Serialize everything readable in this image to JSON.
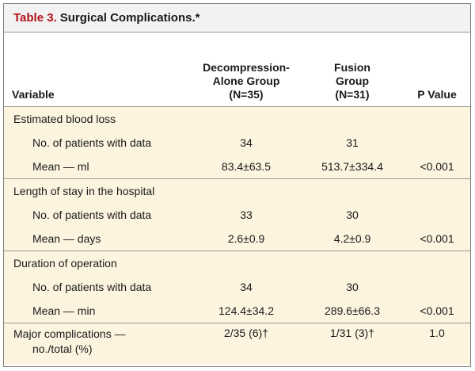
{
  "title": {
    "number": "Table 3.",
    "text": "Surgical Complications.*"
  },
  "columns": {
    "variable": "Variable",
    "decompression": [
      "Decompression-",
      "Alone Group",
      "(N=35)"
    ],
    "fusion": [
      "Fusion",
      "Group",
      "(N=31)"
    ],
    "p_value": "P Value"
  },
  "sections": [
    {
      "label": "Estimated blood loss",
      "rows": [
        {
          "label": "No. of patients with data",
          "dec": "34",
          "fus": "31",
          "p": ""
        },
        {
          "label": "Mean — ml",
          "dec": "83.4±63.5",
          "fus": "513.7±334.4",
          "p": "<0.001"
        }
      ]
    },
    {
      "label": "Length of stay in the hospital",
      "rows": [
        {
          "label": "No. of patients with data",
          "dec": "33",
          "fus": "30",
          "p": ""
        },
        {
          "label": "Mean — days",
          "dec": "2.6±0.9",
          "fus": "4.2±0.9",
          "p": "<0.001"
        }
      ]
    },
    {
      "label": "Duration of operation",
      "rows": [
        {
          "label": "No. of patients with data",
          "dec": "34",
          "fus": "30",
          "p": ""
        },
        {
          "label": "Mean — min",
          "dec": "124.4±34.2",
          "fus": "289.6±66.3",
          "p": "<0.001"
        }
      ]
    }
  ],
  "major": {
    "label_line1": "Major complications —",
    "label_line2": "no./total (%)",
    "dec": "2/35 (6)†",
    "fus": "1/31 (3)†",
    "p": "1.0"
  }
}
